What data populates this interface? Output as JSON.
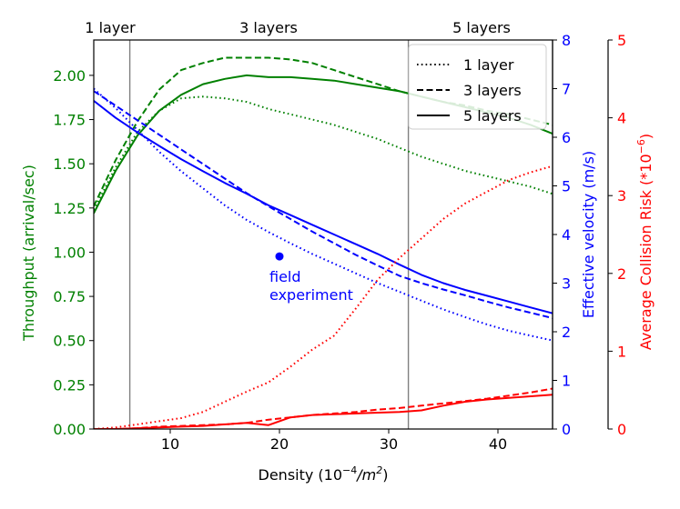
{
  "chart_data": {
    "type": "line",
    "xlabel": "Density (10",
    "xlabel_sup": "−4",
    "xlabel_unit": "/m",
    "xlabel_unit_sup": "2",
    "xlabel_end": ")",
    "xlim": [
      3,
      45
    ],
    "xticks": [
      10,
      20,
      30,
      40
    ],
    "axes": {
      "throughput": {
        "label": "Throughput (arrival/sec)",
        "color": "#008000",
        "ylim": [
          0,
          2.2
        ],
        "ticks": [
          "0.00",
          "0.25",
          "0.50",
          "0.75",
          "1.00",
          "1.25",
          "1.50",
          "1.75",
          "2.00"
        ],
        "tick_values": [
          0,
          0.25,
          0.5,
          0.75,
          1.0,
          1.25,
          1.5,
          1.75,
          2.0
        ]
      },
      "velocity": {
        "label": "Effective velocity (m/s)",
        "color": "#0000ff",
        "ylim": [
          0,
          8
        ],
        "ticks": [
          "0",
          "1",
          "2",
          "3",
          "4",
          "5",
          "6",
          "7",
          "8"
        ],
        "tick_values": [
          0,
          1,
          2,
          3,
          4,
          5,
          6,
          7,
          8
        ]
      },
      "collision": {
        "label": "Average Collision Risk (*10",
        "label_sup": "−6",
        "label_end": ")",
        "color": "#ff0000",
        "ylim": [
          0,
          5
        ],
        "ticks": [
          "0",
          "1",
          "2",
          "3",
          "4",
          "5"
        ],
        "tick_values": [
          0,
          1,
          2,
          3,
          4,
          5
        ]
      }
    },
    "regions": {
      "boundaries": [
        6.3,
        31.8
      ],
      "labels": [
        {
          "text": "1 layer",
          "x": 4.5
        },
        {
          "text": "3 layers",
          "x": 19.0
        },
        {
          "text": "5 layers",
          "x": 38.5
        }
      ]
    },
    "legend": {
      "placement": "top-right",
      "entries": [
        {
          "label": "1 layer",
          "style": "dotted"
        },
        {
          "label": "3 layers",
          "style": "dashed"
        },
        {
          "label": "5 layers",
          "style": "solid"
        }
      ]
    },
    "annotation": {
      "lines": [
        "field",
        "experiment"
      ],
      "x": 20,
      "velocity": 3.55
    },
    "series": [
      {
        "axis": "throughput",
        "style": "dotted",
        "x": [
          3,
          5,
          7,
          9,
          11,
          13,
          15,
          17,
          19,
          21,
          23,
          25,
          27,
          29,
          31,
          33,
          35,
          37,
          39,
          41,
          43,
          45
        ],
        "y": [
          1.24,
          1.48,
          1.68,
          1.8,
          1.87,
          1.88,
          1.87,
          1.85,
          1.81,
          1.78,
          1.75,
          1.72,
          1.68,
          1.64,
          1.59,
          1.54,
          1.5,
          1.46,
          1.43,
          1.4,
          1.37,
          1.33
        ]
      },
      {
        "axis": "throughput",
        "style": "dashed",
        "x": [
          3,
          5,
          7,
          9,
          11,
          13,
          15,
          17,
          19,
          21,
          23,
          25,
          27,
          29,
          31,
          33,
          35,
          37,
          39,
          41,
          43,
          45
        ],
        "y": [
          1.26,
          1.52,
          1.74,
          1.92,
          2.03,
          2.07,
          2.1,
          2.1,
          2.1,
          2.09,
          2.07,
          2.03,
          1.99,
          1.95,
          1.91,
          1.88,
          1.85,
          1.83,
          1.8,
          1.78,
          1.75,
          1.72
        ]
      },
      {
        "axis": "throughput",
        "style": "solid",
        "x": [
          3,
          5,
          7,
          9,
          11,
          13,
          15,
          17,
          19,
          21,
          23,
          25,
          27,
          29,
          31,
          33,
          35,
          37,
          39,
          41,
          43,
          45
        ],
        "y": [
          1.22,
          1.46,
          1.66,
          1.8,
          1.89,
          1.95,
          1.98,
          2.0,
          1.99,
          1.99,
          1.98,
          1.97,
          1.95,
          1.93,
          1.91,
          1.88,
          1.85,
          1.82,
          1.79,
          1.76,
          1.72,
          1.67
        ]
      },
      {
        "axis": "velocity",
        "style": "dotted",
        "x": [
          3,
          5,
          7,
          9,
          11,
          13,
          15,
          17,
          19,
          21,
          23,
          25,
          27,
          29,
          31,
          33,
          35,
          37,
          39,
          41,
          43,
          45
        ],
        "y": [
          7.0,
          6.6,
          6.15,
          5.7,
          5.3,
          4.95,
          4.6,
          4.3,
          4.05,
          3.82,
          3.6,
          3.4,
          3.2,
          3.0,
          2.82,
          2.64,
          2.46,
          2.3,
          2.15,
          2.02,
          1.92,
          1.82
        ]
      },
      {
        "axis": "velocity",
        "style": "dashed",
        "x": [
          3,
          5,
          7,
          9,
          11,
          13,
          15,
          17,
          19,
          21,
          23,
          25,
          27,
          29,
          31,
          33,
          35,
          37,
          39,
          41,
          43,
          45
        ],
        "y": [
          6.95,
          6.65,
          6.35,
          6.05,
          5.75,
          5.45,
          5.15,
          4.85,
          4.58,
          4.32,
          4.06,
          3.82,
          3.58,
          3.36,
          3.15,
          3.0,
          2.87,
          2.75,
          2.62,
          2.5,
          2.39,
          2.28
        ]
      },
      {
        "axis": "velocity",
        "style": "solid",
        "x": [
          3,
          5,
          7,
          9,
          11,
          13,
          15,
          17,
          19,
          21,
          23,
          25,
          27,
          29,
          31,
          33,
          35,
          37,
          39,
          41,
          43,
          45
        ],
        "y": [
          6.75,
          6.4,
          6.1,
          5.82,
          5.55,
          5.3,
          5.06,
          4.84,
          4.6,
          4.4,
          4.2,
          4.0,
          3.8,
          3.6,
          3.38,
          3.17,
          3.0,
          2.86,
          2.74,
          2.62,
          2.5,
          2.38
        ]
      },
      {
        "axis": "collision",
        "style": "dotted",
        "x": [
          3,
          5,
          7,
          9,
          11,
          13,
          15,
          17,
          19,
          21,
          23,
          25,
          27,
          29,
          31,
          33,
          35,
          37,
          39,
          41,
          43,
          45
        ],
        "y": [
          0.0,
          0.02,
          0.06,
          0.1,
          0.14,
          0.22,
          0.35,
          0.48,
          0.6,
          0.8,
          1.02,
          1.2,
          1.55,
          1.92,
          2.2,
          2.45,
          2.7,
          2.9,
          3.05,
          3.2,
          3.3,
          3.38
        ]
      },
      {
        "axis": "collision",
        "style": "dashed",
        "x": [
          3,
          5,
          7,
          9,
          11,
          13,
          15,
          17,
          19,
          21,
          23,
          25,
          27,
          29,
          31,
          33,
          35,
          37,
          39,
          41,
          43,
          45
        ],
        "y": [
          0.0,
          0.0,
          0.01,
          0.03,
          0.04,
          0.05,
          0.06,
          0.08,
          0.12,
          0.15,
          0.18,
          0.2,
          0.22,
          0.25,
          0.27,
          0.3,
          0.33,
          0.36,
          0.39,
          0.43,
          0.47,
          0.52
        ]
      },
      {
        "axis": "collision",
        "style": "solid",
        "x": [
          3,
          5,
          7,
          9,
          11,
          13,
          15,
          17,
          19,
          21,
          23,
          25,
          27,
          29,
          31,
          33,
          35,
          37,
          39,
          41,
          43,
          45
        ],
        "y": [
          0.0,
          0.0,
          0.01,
          0.02,
          0.03,
          0.04,
          0.06,
          0.08,
          0.05,
          0.15,
          0.18,
          0.19,
          0.2,
          0.21,
          0.22,
          0.24,
          0.3,
          0.35,
          0.38,
          0.4,
          0.42,
          0.44
        ]
      }
    ]
  }
}
